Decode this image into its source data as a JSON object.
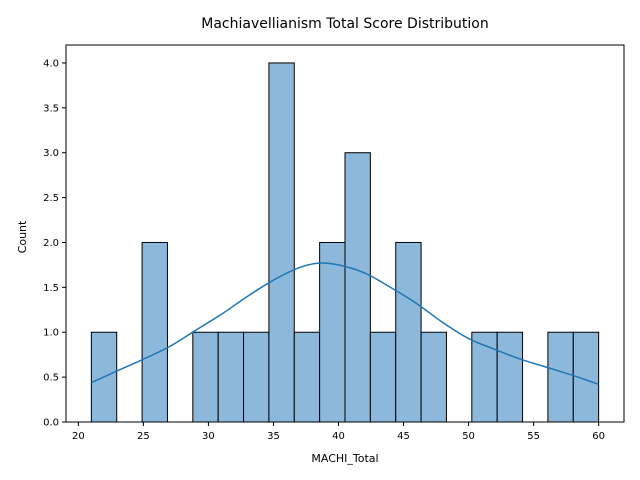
{
  "chart_data": {
    "type": "bar",
    "title": "Machiavellianism Total Score Distribution",
    "xlabel": "MACHI_Total",
    "ylabel": "Count",
    "xlim": [
      19.05,
      61.95
    ],
    "ylim": [
      0,
      4.2
    ],
    "x_ticks": [
      20,
      25,
      30,
      35,
      40,
      45,
      50,
      55,
      60
    ],
    "y_ticks": [
      0.0,
      0.5,
      1.0,
      1.5,
      2.0,
      2.5,
      3.0,
      3.5,
      4.0
    ],
    "bins": {
      "start": 21,
      "end": 60,
      "count": 20
    },
    "values": [
      1,
      0,
      2,
      0,
      1,
      1,
      1,
      4,
      1,
      2,
      3,
      1,
      2,
      1,
      0,
      1,
      1,
      0,
      1,
      1
    ],
    "kde": {
      "x": [
        21,
        23,
        25,
        27,
        29,
        31,
        33,
        35,
        37,
        38.5,
        40,
        42,
        44,
        46,
        48,
        50,
        52,
        54,
        56,
        58,
        60
      ],
      "y": [
        0.44,
        0.57,
        0.7,
        0.84,
        1.02,
        1.2,
        1.4,
        1.58,
        1.72,
        1.77,
        1.75,
        1.66,
        1.5,
        1.32,
        1.11,
        0.93,
        0.81,
        0.7,
        0.61,
        0.52,
        0.42
      ]
    },
    "colors": {
      "bar_fill": "#8cb8db",
      "bar_edge": "#000000",
      "kde_line": "#1f77b4"
    },
    "grid": false,
    "legend": "none"
  }
}
